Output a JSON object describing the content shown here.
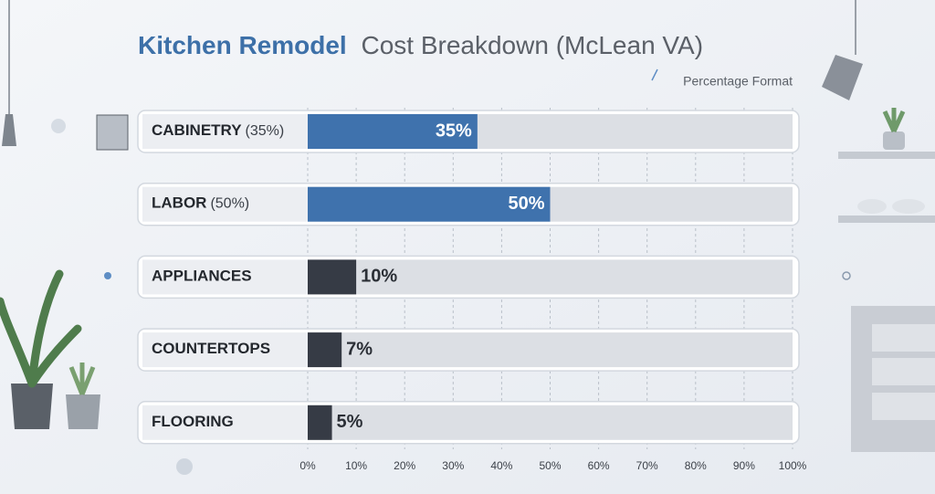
{
  "chart_data": {
    "type": "hbar",
    "title": {
      "highlight": "Kitchen Remodel",
      "rest": "Cost Breakdown (McLean VA)"
    },
    "subtitle": "Percentage Format",
    "categories": [
      "CABINETRY",
      "LABOR",
      "APPLIANCES",
      "COUNTERTOPS",
      "FLOORING"
    ],
    "category_notes": [
      "(35%)",
      "(50%)",
      null,
      null,
      null
    ],
    "values": [
      35,
      50,
      10,
      7,
      5
    ],
    "value_labels": [
      "35%",
      "50%",
      "10%",
      "7%",
      "5%"
    ],
    "colors": [
      "#3f72ad",
      "#3f72ad",
      "#363b45",
      "#363b45",
      "#363b45"
    ],
    "xlim": [
      0,
      100
    ],
    "xticks": [
      {
        "value": 0,
        "label": "0%"
      },
      {
        "value": 10,
        "label": "10%"
      },
      {
        "value": 20,
        "label": "20%"
      },
      {
        "value": 30,
        "label": "30%"
      },
      {
        "value": 40,
        "label": "40%"
      },
      {
        "value": 50,
        "label": "50%"
      },
      {
        "value": 60,
        "label": "60%"
      },
      {
        "value": 70,
        "label": "70%"
      },
      {
        "value": 80,
        "label": "80%"
      },
      {
        "value": 90,
        "label": "90%"
      },
      {
        "value": 100,
        "label": "100%"
      }
    ],
    "grid": true
  }
}
